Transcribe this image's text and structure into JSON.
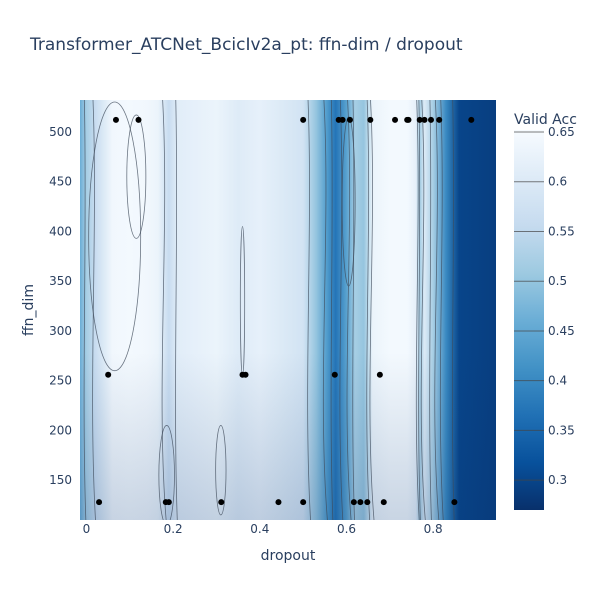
{
  "chart_data": {
    "type": "contour",
    "title": "Transformer_ATCNet_BcicIv2a_pt: ffn-dim / dropout",
    "xlabel": "dropout",
    "ylabel": "ffn_dim",
    "xlim": [
      -0.015,
      0.945
    ],
    "ylim": [
      110,
      532
    ],
    "x_ticks": [
      0,
      0.2,
      0.4,
      0.6,
      0.8
    ],
    "x_tick_labels": [
      "0",
      "0.2",
      "0.4",
      "0.6",
      "0.8"
    ],
    "y_ticks": [
      150,
      200,
      250,
      300,
      350,
      400,
      450,
      500
    ],
    "y_tick_labels": [
      "150",
      "200",
      "250",
      "300",
      "350",
      "400",
      "450",
      "500"
    ],
    "colorbar": {
      "title": "Valid Acc",
      "range": [
        0.27,
        0.652
      ],
      "ticks": [
        0.3,
        0.35,
        0.4,
        0.45,
        0.5,
        0.55,
        0.6,
        0.65
      ],
      "tick_labels": [
        "0.3",
        "0.35",
        "0.4",
        "0.45",
        "0.5",
        "0.55",
        "0.6",
        "0.65"
      ],
      "colorscale": [
        "#08306b",
        "#08519c",
        "#2171b5",
        "#4292c6",
        "#6baed6",
        "#9ecae1",
        "#c6dbef",
        "#deebf7",
        "#f7fbff"
      ]
    },
    "accuracy_profile_dropout": [
      [
        -0.015,
        0.46
      ],
      [
        0.0,
        0.52
      ],
      [
        0.02,
        0.56
      ],
      [
        0.04,
        0.6
      ],
      [
        0.06,
        0.64
      ],
      [
        0.1,
        0.645
      ],
      [
        0.14,
        0.64
      ],
      [
        0.165,
        0.63
      ],
      [
        0.19,
        0.56
      ],
      [
        0.21,
        0.61
      ],
      [
        0.25,
        0.62
      ],
      [
        0.3,
        0.63
      ],
      [
        0.35,
        0.605
      ],
      [
        0.4,
        0.62
      ],
      [
        0.45,
        0.6
      ],
      [
        0.5,
        0.58
      ],
      [
        0.53,
        0.5
      ],
      [
        0.555,
        0.43
      ],
      [
        0.575,
        0.37
      ],
      [
        0.6,
        0.44
      ],
      [
        0.62,
        0.52
      ],
      [
        0.64,
        0.5
      ],
      [
        0.66,
        0.63
      ],
      [
        0.7,
        0.645
      ],
      [
        0.74,
        0.645
      ],
      [
        0.76,
        0.62
      ],
      [
        0.77,
        0.52
      ],
      [
        0.78,
        0.6
      ],
      [
        0.8,
        0.52
      ],
      [
        0.83,
        0.4
      ],
      [
        0.86,
        0.3
      ],
      [
        0.945,
        0.29
      ]
    ],
    "points": [
      {
        "x": 0.068,
        "y": 512
      },
      {
        "x": 0.12,
        "y": 512
      },
      {
        "x": 0.5,
        "y": 512
      },
      {
        "x": 0.582,
        "y": 512
      },
      {
        "x": 0.591,
        "y": 512
      },
      {
        "x": 0.608,
        "y": 512
      },
      {
        "x": 0.655,
        "y": 512
      },
      {
        "x": 0.712,
        "y": 512
      },
      {
        "x": 0.74,
        "y": 512
      },
      {
        "x": 0.743,
        "y": 512
      },
      {
        "x": 0.769,
        "y": 512
      },
      {
        "x": 0.78,
        "y": 512
      },
      {
        "x": 0.795,
        "y": 512
      },
      {
        "x": 0.814,
        "y": 512
      },
      {
        "x": 0.888,
        "y": 512
      },
      {
        "x": 0.05,
        "y": 256
      },
      {
        "x": 0.36,
        "y": 256
      },
      {
        "x": 0.367,
        "y": 256
      },
      {
        "x": 0.573,
        "y": 256
      },
      {
        "x": 0.677,
        "y": 256
      },
      {
        "x": 0.029,
        "y": 128
      },
      {
        "x": 0.183,
        "y": 128
      },
      {
        "x": 0.19,
        "y": 128
      },
      {
        "x": 0.311,
        "y": 128
      },
      {
        "x": 0.443,
        "y": 128
      },
      {
        "x": 0.5,
        "y": 128
      },
      {
        "x": 0.617,
        "y": 128
      },
      {
        "x": 0.632,
        "y": 128
      },
      {
        "x": 0.648,
        "y": 128
      },
      {
        "x": 0.686,
        "y": 128
      },
      {
        "x": 0.849,
        "y": 128
      }
    ],
    "grid": false,
    "legend": "right"
  }
}
